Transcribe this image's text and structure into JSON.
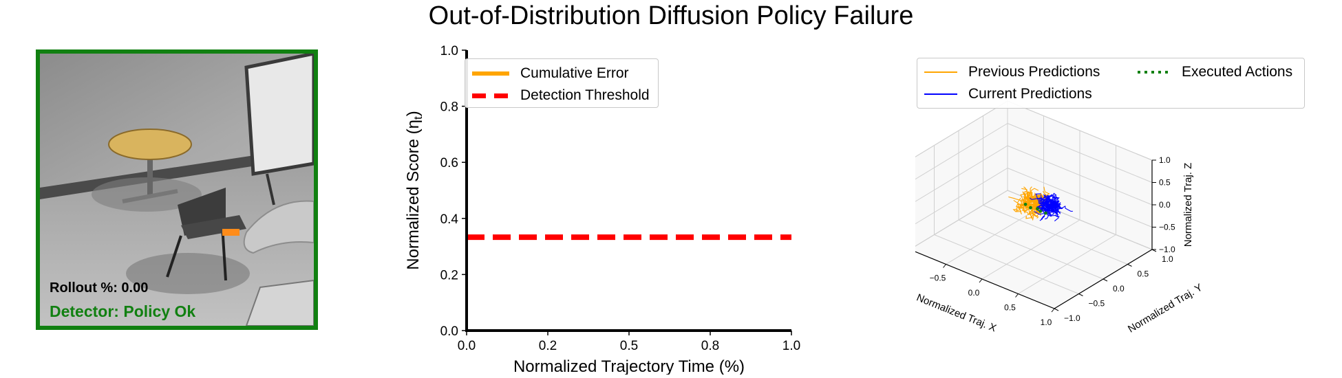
{
  "figure_title": "Out-of-Distribution Diffusion Policy Failure",
  "camera_panel": {
    "rollout_label": "Rollout %: 0.00",
    "detector_label": "Detector: Policy Ok",
    "status_color": "#118011"
  },
  "chart_data": [
    {
      "type": "line",
      "title": "",
      "xlabel": "Normalized Trajectory Time (%)",
      "ylabel": "Normalized Score (η",
      "ylabel_sub": "t",
      "ylabel_close": ")",
      "xlim": [
        0.0,
        1.0
      ],
      "ylim": [
        0.0,
        1.0
      ],
      "x_ticks": [
        "0.0",
        "0.2",
        "0.5",
        "0.8",
        "1.0"
      ],
      "x_tick_values": [
        0.0,
        0.25,
        0.5,
        0.75,
        1.0
      ],
      "y_ticks": [
        "0.0",
        "0.2",
        "0.4",
        "0.6",
        "0.8",
        "1.0"
      ],
      "y_tick_values": [
        0.0,
        0.2,
        0.4,
        0.6,
        0.8,
        1.0
      ],
      "grid": false,
      "legend_placement": "top-left",
      "series": [
        {
          "name": "Cumulative Error",
          "color": "#ffa500",
          "style": "solid",
          "x": [],
          "y": []
        },
        {
          "name": "Detection Threshold",
          "color": "#ff0000",
          "style": "dashed",
          "x": [
            0.0,
            1.0
          ],
          "y": [
            0.333,
            0.333
          ]
        }
      ]
    },
    {
      "type": "scatter",
      "title": "",
      "xlabel": "Normalized Traj. X",
      "ylabel": "Normalized Traj. Y",
      "zlabel": "Normalized Traj. Z",
      "xlim": [
        -1.0,
        1.0
      ],
      "ylim": [
        -1.0,
        1.0
      ],
      "zlim": [
        -1.0,
        1.0
      ],
      "x_ticks": [
        "−1.0",
        "−0.5",
        "0.0",
        "0.5",
        "1.0"
      ],
      "y_ticks": [
        "−1.0",
        "−0.5",
        "0.0",
        "0.5",
        "1.0"
      ],
      "z_ticks": [
        "−1.0",
        "−0.5",
        "0.0",
        "0.5",
        "1.0"
      ],
      "tick_values": [
        -1.0,
        -0.5,
        0.0,
        0.5,
        1.0
      ],
      "grid": true,
      "legend_placement": "top",
      "series": [
        {
          "name": "Previous Predictions",
          "color": "#ffa500",
          "style": "solid",
          "center": [
            -0.05,
            0.1,
            -0.05
          ],
          "spread": 0.25
        },
        {
          "name": "Current Predictions",
          "color": "#0000ff",
          "style": "solid",
          "center": [
            0.2,
            0.1,
            0.05
          ],
          "spread": 0.22
        },
        {
          "name": "Executed Actions",
          "color": "#118011",
          "style": "dotted",
          "center": [
            -0.1,
            0.05,
            -0.1
          ],
          "spread": 0.05
        }
      ]
    }
  ]
}
